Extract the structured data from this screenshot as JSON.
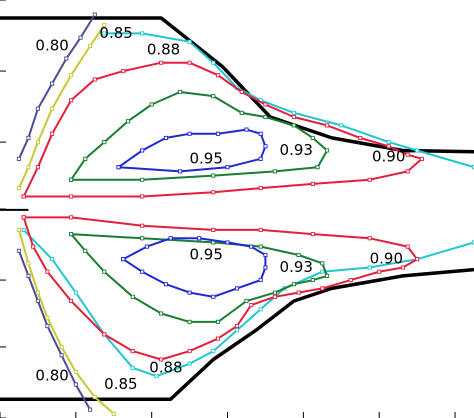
{
  "chart_data": {
    "type": "line",
    "title": "",
    "xlabel": "",
    "ylabel": "",
    "xlim": [
      0,
      100
    ],
    "ylim": [
      0,
      100
    ],
    "grid": false,
    "legend": "none",
    "boundary": {
      "name": "",
      "color": "#000000",
      "upper": [
        [
          0,
          95.7
        ],
        [
          34,
          95.7
        ],
        [
          47,
          84
        ],
        [
          57,
          72
        ],
        [
          70,
          67
        ],
        [
          85,
          64
        ],
        [
          100,
          63.7
        ]
      ],
      "lower": [
        [
          0,
          4.5
        ],
        [
          36,
          4.5
        ],
        [
          45,
          14
        ],
        [
          54,
          21
        ],
        [
          62,
          28
        ],
        [
          70,
          31
        ],
        [
          85,
          34
        ],
        [
          100,
          35.5
        ]
      ]
    },
    "axis_line": {
      "y": 49.8
    },
    "contours": [
      {
        "level": "0.80",
        "color": "#4b4b96",
        "upper": [
          [
            20,
            96.5
          ],
          [
            17,
            91
          ],
          [
            14,
            86
          ],
          [
            11,
            80
          ],
          [
            8,
            74
          ],
          [
            6,
            67
          ],
          [
            4,
            62
          ]
        ],
        "lower": [
          [
            4,
            40
          ],
          [
            6,
            34
          ],
          [
            8,
            28
          ],
          [
            10,
            22
          ],
          [
            13,
            15
          ],
          [
            16,
            8
          ],
          [
            19,
            2
          ]
        ]
      },
      {
        "level": "0.85",
        "color": "#c8c832",
        "upper": [
          [
            22,
            94
          ],
          [
            19,
            89
          ],
          [
            15,
            82
          ],
          [
            11,
            74
          ],
          [
            8,
            66
          ],
          [
            6,
            60
          ],
          [
            4,
            55
          ]
        ],
        "lower": [
          [
            4,
            45
          ],
          [
            6,
            37
          ],
          [
            8,
            30
          ],
          [
            10,
            24
          ],
          [
            13,
            17
          ],
          [
            16,
            11
          ],
          [
            20,
            5
          ],
          [
            24,
            1
          ]
        ]
      },
      {
        "level": "0.88",
        "color": "#1ec8d2",
        "upper": [
          [
            22,
            92
          ],
          [
            30,
            92
          ],
          [
            40,
            90
          ],
          [
            45,
            85
          ],
          [
            50,
            79
          ],
          [
            55,
            76
          ],
          [
            62,
            73
          ],
          [
            72,
            70
          ],
          [
            82,
            66
          ],
          [
            88,
            64
          ],
          [
            100,
            60
          ]
        ],
        "lower": [
          [
            100,
            42
          ],
          [
            88,
            38
          ],
          [
            78,
            36
          ],
          [
            68,
            35
          ],
          [
            60,
            31
          ],
          [
            55,
            26
          ],
          [
            50,
            21
          ],
          [
            45,
            16
          ],
          [
            40,
            13
          ],
          [
            33,
            10
          ],
          [
            28,
            12
          ],
          [
            22,
            20
          ],
          [
            16,
            30
          ],
          [
            11,
            38
          ],
          [
            5,
            45
          ]
        ]
      },
      {
        "level": "0.90",
        "color": "#e61e3c",
        "upper": [
          [
            5,
            53
          ],
          [
            8,
            60
          ],
          [
            11,
            68
          ],
          [
            15,
            76
          ],
          [
            20,
            81
          ],
          [
            26,
            83
          ],
          [
            34,
            85
          ],
          [
            40,
            85
          ],
          [
            46,
            82
          ],
          [
            51,
            78
          ],
          [
            56,
            75
          ],
          [
            62,
            72
          ],
          [
            69,
            70
          ],
          [
            76,
            67
          ],
          [
            82,
            65
          ],
          [
            86,
            63
          ],
          [
            89,
            62
          ],
          [
            86,
            59
          ],
          [
            78,
            57
          ],
          [
            66,
            56
          ],
          [
            55,
            55
          ],
          [
            45,
            54
          ],
          [
            30,
            53
          ],
          [
            15,
            53
          ],
          [
            5,
            53
          ]
        ],
        "lower": [
          [
            5,
            48
          ],
          [
            15,
            48
          ],
          [
            30,
            46
          ],
          [
            45,
            45
          ],
          [
            55,
            45
          ],
          [
            66,
            44
          ],
          [
            78,
            43
          ],
          [
            86,
            41
          ],
          [
            88,
            38
          ],
          [
            85,
            36
          ],
          [
            80,
            35
          ],
          [
            74,
            33
          ],
          [
            68,
            31
          ],
          [
            63,
            30
          ],
          [
            58,
            29
          ],
          [
            53,
            27
          ],
          [
            50,
            22
          ],
          [
            46,
            19
          ],
          [
            40,
            16
          ],
          [
            34,
            14
          ],
          [
            28,
            16
          ],
          [
            22,
            20
          ],
          [
            15,
            28
          ],
          [
            10,
            35
          ],
          [
            7,
            41
          ],
          [
            5,
            48
          ]
        ]
      },
      {
        "level": "0.93",
        "color": "#197d32",
        "upper": [
          [
            15,
            57
          ],
          [
            18,
            62
          ],
          [
            22,
            66
          ],
          [
            27,
            71
          ],
          [
            32,
            75
          ],
          [
            38,
            78
          ],
          [
            45,
            77
          ],
          [
            51,
            73
          ],
          [
            56,
            72
          ],
          [
            62,
            70
          ],
          [
            66,
            67
          ],
          [
            69,
            64
          ],
          [
            67,
            60
          ],
          [
            58,
            59
          ],
          [
            45,
            58
          ],
          [
            30,
            57
          ],
          [
            15,
            57
          ]
        ],
        "lower": [
          [
            15,
            44
          ],
          [
            30,
            43
          ],
          [
            45,
            42
          ],
          [
            55,
            41
          ],
          [
            63,
            39
          ],
          [
            68,
            37
          ],
          [
            69,
            34
          ],
          [
            66,
            33
          ],
          [
            62,
            32
          ],
          [
            58,
            30
          ],
          [
            52,
            28
          ],
          [
            46,
            23
          ],
          [
            40,
            23
          ],
          [
            34,
            25
          ],
          [
            28,
            29
          ],
          [
            22,
            35
          ],
          [
            18,
            40
          ],
          [
            15,
            44
          ]
        ]
      },
      {
        "level": "0.95",
        "color": "#1e28d2",
        "upper": [
          [
            25,
            60
          ],
          [
            30,
            64
          ],
          [
            35,
            67
          ],
          [
            40,
            68
          ],
          [
            46,
            68
          ],
          [
            52,
            69
          ],
          [
            55,
            68
          ],
          [
            56,
            65
          ],
          [
            55,
            62
          ],
          [
            48,
            60
          ],
          [
            38,
            59
          ],
          [
            25,
            60
          ]
        ],
        "lower": [
          [
            26,
            38
          ],
          [
            31,
            41
          ],
          [
            36,
            43
          ],
          [
            42,
            43
          ],
          [
            48,
            42
          ],
          [
            53,
            41
          ],
          [
            56,
            39
          ],
          [
            56,
            36
          ],
          [
            55,
            33
          ],
          [
            50,
            31
          ],
          [
            45,
            29
          ],
          [
            40,
            30
          ],
          [
            35,
            32
          ],
          [
            30,
            35
          ],
          [
            26,
            38
          ]
        ]
      }
    ],
    "annotations": [
      {
        "text": "0.80",
        "x": 11,
        "y": 89
      },
      {
        "text": "0.85",
        "x": 24.5,
        "y": 92
      },
      {
        "text": "0.88",
        "x": 34.5,
        "y": 88
      },
      {
        "text": "0.95",
        "x": 43.5,
        "y": 62
      },
      {
        "text": "0.93",
        "x": 62.5,
        "y": 64
      },
      {
        "text": "0.90",
        "x": 82,
        "y": 62.5
      },
      {
        "text": "0.95",
        "x": 43.5,
        "y": 39
      },
      {
        "text": "0.93",
        "x": 62.5,
        "y": 36
      },
      {
        "text": "0.90",
        "x": 81.5,
        "y": 38
      },
      {
        "text": "0.80",
        "x": 11,
        "y": 10
      },
      {
        "text": "0.85",
        "x": 25.5,
        "y": 8
      },
      {
        "text": "0.88",
        "x": 35,
        "y": 12
      }
    ],
    "ticks": {
      "left": [
        0,
        17,
        33,
        50,
        66,
        83,
        100
      ],
      "bottom": [
        0,
        16,
        32,
        48,
        64,
        80,
        96
      ]
    }
  }
}
